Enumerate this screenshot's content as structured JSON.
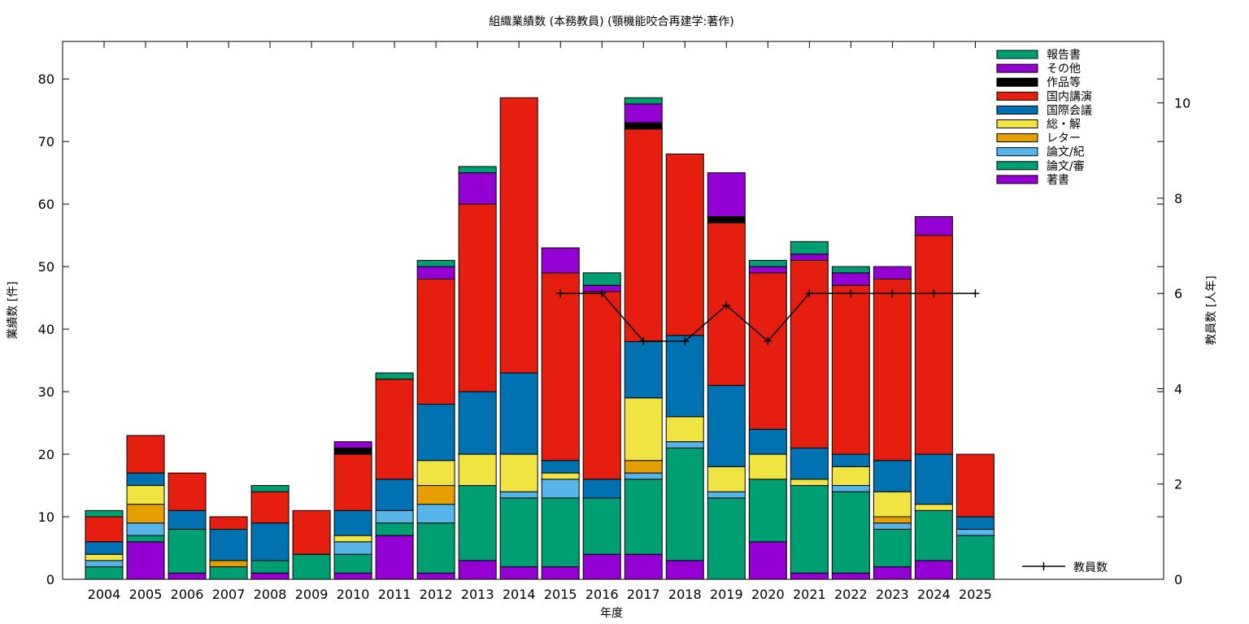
{
  "chart_data": {
    "type": "bar",
    "stacked": true,
    "title": "組織業績数 (本務教員) (顎機能咬合再建学:著作)",
    "xlabel": "年度",
    "ylabel": "業績数 [件]",
    "y2label": "教員数 [人年]",
    "ylim": [
      0,
      86
    ],
    "y2lim": [
      0,
      11.29
    ],
    "yticks": [
      "0",
      "10",
      "20",
      "30",
      "40",
      "50",
      "60",
      "70",
      "80"
    ],
    "y2ticks": [
      "0",
      "2",
      "4",
      "6",
      "8",
      "10"
    ],
    "legend_position": "top-right",
    "categories": [
      "2004",
      "2005",
      "2006",
      "2007",
      "2008",
      "2009",
      "2010",
      "2011",
      "2012",
      "2013",
      "2014",
      "2015",
      "2016",
      "2017",
      "2018",
      "2019",
      "2020",
      "2021",
      "2022",
      "2023",
      "2024",
      "2025"
    ],
    "series": [
      {
        "name": "著書",
        "color": "#9400d3",
        "values": [
          0,
          6,
          1,
          0,
          1,
          0,
          1,
          7,
          1,
          3,
          2,
          2,
          4,
          4,
          3,
          0,
          6,
          1,
          1,
          2,
          3,
          0
        ]
      },
      {
        "name": "論文/審",
        "color": "#009e73",
        "values": [
          2,
          1,
          7,
          2,
          2,
          4,
          3,
          2,
          8,
          12,
          11,
          11,
          9,
          12,
          18,
          13,
          10,
          14,
          13,
          6,
          8,
          7
        ]
      },
      {
        "name": "論文/紀",
        "color": "#56b4e9",
        "values": [
          1,
          2,
          0,
          0,
          0,
          0,
          2,
          2,
          3,
          0,
          1,
          3,
          0,
          1,
          1,
          1,
          0,
          0,
          1,
          1,
          0,
          1
        ]
      },
      {
        "name": "レター",
        "color": "#e69f00",
        "values": [
          0,
          3,
          0,
          1,
          0,
          0,
          0,
          0,
          3,
          0,
          0,
          0,
          0,
          2,
          0,
          0,
          0,
          0,
          0,
          1,
          0,
          0
        ]
      },
      {
        "name": "総・解",
        "color": "#f0e442",
        "values": [
          1,
          3,
          0,
          0,
          0,
          0,
          1,
          0,
          4,
          5,
          6,
          1,
          0,
          10,
          4,
          4,
          4,
          1,
          3,
          4,
          1,
          0
        ]
      },
      {
        "name": "国際会議",
        "color": "#0072b2",
        "values": [
          2,
          2,
          3,
          5,
          6,
          0,
          4,
          5,
          9,
          10,
          13,
          2,
          3,
          9,
          13,
          13,
          4,
          5,
          2,
          5,
          8,
          2
        ]
      },
      {
        "name": "国内講演",
        "color": "#e51e10",
        "values": [
          4,
          6,
          6,
          2,
          5,
          7,
          9,
          16,
          20,
          30,
          44,
          30,
          30,
          34,
          29,
          26,
          25,
          30,
          27,
          29,
          35,
          10
        ]
      },
      {
        "name": "作品等",
        "color": "#000000",
        "values": [
          0,
          0,
          0,
          0,
          0,
          0,
          1,
          0,
          0,
          0,
          0,
          0,
          0,
          1,
          0,
          1,
          0,
          0,
          0,
          0,
          0,
          0
        ]
      },
      {
        "name": "その他",
        "color": "#9400d3",
        "values": [
          0,
          0,
          0,
          0,
          0,
          0,
          1,
          0,
          2,
          5,
          0,
          4,
          1,
          3,
          0,
          7,
          1,
          1,
          2,
          2,
          3,
          0
        ]
      },
      {
        "name": "報告書",
        "color": "#009e73",
        "values": [
          1,
          0,
          0,
          0,
          1,
          0,
          0,
          1,
          1,
          1,
          0,
          0,
          2,
          1,
          0,
          0,
          1,
          2,
          1,
          0,
          0,
          0
        ]
      }
    ],
    "line_series": {
      "name": "教員数",
      "color": "#000000",
      "axis": "y2",
      "x": [
        "2015",
        "2016",
        "2017",
        "2018",
        "2019",
        "2020",
        "2021",
        "2022",
        "2023",
        "2024",
        "2025"
      ],
      "values": [
        6,
        6,
        5,
        5,
        5.75,
        5,
        6,
        6,
        6,
        6,
        6
      ]
    }
  }
}
